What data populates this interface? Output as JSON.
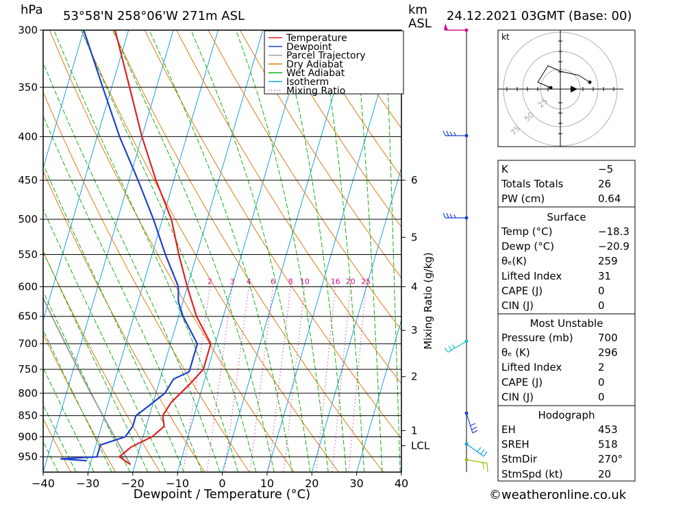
{
  "header": {
    "pressure_unit": "hPa",
    "location": "53°58'N  258°06'W  271m  ASL",
    "height_unit_km": "km",
    "height_unit_asl": "ASL",
    "datetime": "24.12.2021  03GMT  (Base: 00)"
  },
  "axes": {
    "xlabel": "Dewpoint / Temperature (°C)",
    "mixing_ratio_label": "Mixing Ratio (g/kg)",
    "x_ticks": [
      -40,
      -30,
      -20,
      -10,
      0,
      10,
      20,
      30,
      40
    ],
    "pressure_ticks": [
      300,
      350,
      400,
      450,
      500,
      550,
      600,
      650,
      700,
      750,
      800,
      850,
      900,
      950
    ],
    "km_ticks": [
      {
        "label": "6",
        "p": 450
      },
      {
        "label": "5",
        "p": 525
      },
      {
        "label": "4",
        "p": 600
      },
      {
        "label": "3",
        "p": 675
      },
      {
        "label": "2",
        "p": 765
      },
      {
        "label": "1",
        "p": 885
      },
      {
        "label": "LCL",
        "p": 922
      }
    ],
    "mixing_ratio_ticks": [
      "2",
      "3",
      "4",
      "6",
      "8",
      "10",
      "16",
      "20",
      "25"
    ]
  },
  "legend": {
    "items": [
      {
        "label": "Temperature",
        "color": "#e02020",
        "style": "solid"
      },
      {
        "label": "Dewpoint",
        "color": "#1a3fd0",
        "style": "solid"
      },
      {
        "label": "Parcel Trajectory",
        "color": "#a0a0a0",
        "style": "solid"
      },
      {
        "label": "Dry Adiabat",
        "color": "#e07a10",
        "style": "solid"
      },
      {
        "label": "Wet Adiabat",
        "color": "#10b010",
        "style": "solid"
      },
      {
        "label": "Isotherm",
        "color": "#1aa0e0",
        "style": "solid"
      },
      {
        "label": "Mixing Ratio",
        "color": "#d0108a",
        "style": "dotted"
      }
    ]
  },
  "chart_data": {
    "type": "line",
    "x_unit": "°C",
    "y_unit": "hPa",
    "xlim": [
      -40,
      40
    ],
    "ylim": [
      300,
      990
    ],
    "y_scale": "log",
    "grid": true,
    "legend_position": "top-right",
    "series": [
      {
        "name": "Temperature",
        "color": "#e02020",
        "points": [
          {
            "p": 300,
            "t": -53
          },
          {
            "p": 350,
            "t": -46
          },
          {
            "p": 400,
            "t": -40
          },
          {
            "p": 450,
            "t": -34
          },
          {
            "p": 500,
            "t": -28
          },
          {
            "p": 550,
            "t": -24
          },
          {
            "p": 600,
            "t": -20
          },
          {
            "p": 650,
            "t": -16
          },
          {
            "p": 700,
            "t": -11
          },
          {
            "p": 750,
            "t": -11
          },
          {
            "p": 780,
            "t": -13
          },
          {
            "p": 820,
            "t": -16
          },
          {
            "p": 850,
            "t": -17
          },
          {
            "p": 875,
            "t": -16
          },
          {
            "p": 900,
            "t": -18
          },
          {
            "p": 925,
            "t": -22
          },
          {
            "p": 950,
            "t": -24
          },
          {
            "p": 970,
            "t": -21
          }
        ]
      },
      {
        "name": "Dewpoint",
        "color": "#1a3fd0",
        "points": [
          {
            "p": 300,
            "t": -60
          },
          {
            "p": 350,
            "t": -52
          },
          {
            "p": 400,
            "t": -45
          },
          {
            "p": 450,
            "t": -38
          },
          {
            "p": 500,
            "t": -32
          },
          {
            "p": 550,
            "t": -27
          },
          {
            "p": 600,
            "t": -22
          },
          {
            "p": 625,
            "t": -21
          },
          {
            "p": 650,
            "t": -19
          },
          {
            "p": 700,
            "t": -14
          },
          {
            "p": 755,
            "t": -14
          },
          {
            "p": 770,
            "t": -17
          },
          {
            "p": 800,
            "t": -18
          },
          {
            "p": 830,
            "t": -21
          },
          {
            "p": 850,
            "t": -23
          },
          {
            "p": 875,
            "t": -23
          },
          {
            "p": 900,
            "t": -24
          },
          {
            "p": 920,
            "t": -29
          },
          {
            "p": 950,
            "t": -29
          },
          {
            "p": 955,
            "t": -37
          },
          {
            "p": 960,
            "t": -31
          }
        ]
      }
    ]
  },
  "hodograph": {
    "unit": "kt",
    "ring_labels": [
      "25",
      "50",
      "75"
    ]
  },
  "indices": {
    "general": [
      {
        "label": "K",
        "value": "-5"
      },
      {
        "label": "Totals Totals",
        "value": "26"
      },
      {
        "label": "PW (cm)",
        "value": "0.64"
      }
    ],
    "surface": {
      "title": "Surface",
      "rows": [
        {
          "label": "Temp (°C)",
          "value": "-18.3"
        },
        {
          "label": "Dewp (°C)",
          "value": "-20.9"
        },
        {
          "label": "θₑ(K)",
          "value": "259"
        },
        {
          "label": "Lifted Index",
          "value": "31"
        },
        {
          "label": "CAPE (J)",
          "value": "0"
        },
        {
          "label": "CIN (J)",
          "value": "0"
        }
      ]
    },
    "most_unstable": {
      "title": "Most Unstable",
      "rows": [
        {
          "label": "Pressure (mb)",
          "value": "700"
        },
        {
          "label": "θₑ (K)",
          "value": "296"
        },
        {
          "label": "Lifted Index",
          "value": "2"
        },
        {
          "label": "CAPE (J)",
          "value": "0"
        },
        {
          "label": "CIN (J)",
          "value": "0"
        }
      ]
    },
    "hodograph": {
      "title": "Hodograph",
      "rows": [
        {
          "label": "EH",
          "value": "453"
        },
        {
          "label": "SREH",
          "value": "518"
        },
        {
          "label": "StmDir",
          "value": "270°"
        },
        {
          "label": "StmSpd (kt)",
          "value": "20"
        }
      ]
    }
  },
  "footer": {
    "copyright": "©weatheronline.co.uk"
  }
}
